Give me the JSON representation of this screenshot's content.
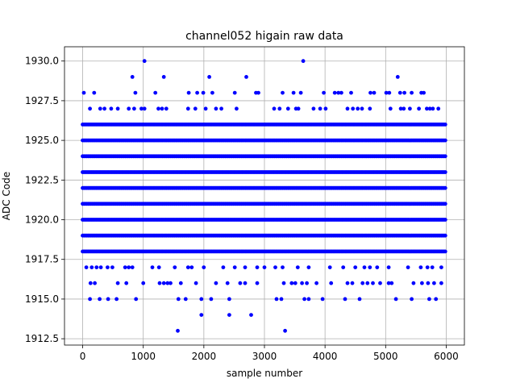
{
  "chart_data": {
    "type": "scatter",
    "title": "channel052 higain raw data",
    "xlabel": "sample number",
    "ylabel": "ADC Code",
    "xlim": [
      -300,
      6300
    ],
    "ylim": [
      1912.1,
      1930.9
    ],
    "xticks": [
      0,
      1000,
      2000,
      3000,
      4000,
      5000,
      6000
    ],
    "xtick_labels": [
      "0",
      "1000",
      "2000",
      "3000",
      "4000",
      "5000",
      "6000"
    ],
    "yticks": [
      1912.5,
      1915.0,
      1917.5,
      1920.0,
      1922.5,
      1925.0,
      1927.5,
      1930.0
    ],
    "ytick_labels": [
      "1912.5",
      "1915.0",
      "1917.5",
      "1920.0",
      "1922.5",
      "1925.0",
      "1927.5",
      "1930.0"
    ],
    "grid": true,
    "marker_color": "#0000ff",
    "n_samples": 6000,
    "levels": [
      {
        "value": 1913,
        "x": [
          1570,
          3340
        ]
      },
      {
        "value": 1914,
        "x": [
          1960,
          2420,
          2780
        ]
      },
      {
        "value": 1915,
        "x": [
          120,
          280,
          420,
          560,
          880,
          1580,
          1700,
          1960,
          2120,
          2420,
          3200,
          3280,
          3660,
          3730,
          3960,
          4330,
          4570,
          5170,
          5430,
          5720,
          5830
        ]
      },
      {
        "value": 1916,
        "x": [
          130,
          200,
          580,
          720,
          1000,
          1270,
          1340,
          1400,
          1450,
          1620,
          1870,
          2200,
          2390,
          2600,
          2680,
          2880,
          3320,
          3450,
          3510,
          3620,
          3700,
          3860,
          4100,
          4370,
          4450,
          4620,
          4700,
          4790,
          4910,
          5050,
          5100,
          5460,
          5600,
          5700,
          5800,
          5920
        ]
      },
      {
        "value": 1917,
        "x": [
          60,
          150,
          230,
          300,
          410,
          490,
          700,
          760,
          820,
          1150,
          1260,
          1520,
          1740,
          1800,
          2000,
          2320,
          2510,
          2680,
          2880,
          3000,
          3180,
          3300,
          3550,
          3730,
          4080,
          4300,
          4500,
          4650,
          4740,
          4860,
          5050,
          5370,
          5580,
          5690,
          5770,
          5920
        ]
      },
      {
        "value": 1918,
        "dense": true
      },
      {
        "value": 1919,
        "dense": true
      },
      {
        "value": 1920,
        "dense": true
      },
      {
        "value": 1921,
        "dense": true
      },
      {
        "value": 1922,
        "dense": true
      },
      {
        "value": 1923,
        "dense": true
      },
      {
        "value": 1924,
        "dense": true
      },
      {
        "value": 1925,
        "dense": true
      },
      {
        "value": 1926,
        "dense": true
      },
      {
        "value": 1927,
        "x": [
          120,
          290,
          360,
          470,
          580,
          760,
          850,
          970,
          1020,
          1250,
          1310,
          1380,
          1740,
          1860,
          2030,
          2200,
          2290,
          2540,
          3160,
          3250,
          3390,
          3520,
          3560,
          3810,
          3920,
          4010,
          4370,
          4460,
          4540,
          4610,
          4740,
          5080,
          5250,
          5300,
          5400,
          5550,
          5680,
          5730,
          5780,
          5870
        ]
      },
      {
        "value": 1928,
        "x": [
          20,
          190,
          870,
          1200,
          1750,
          1890,
          1990,
          2140,
          2510,
          2860,
          2900,
          3300,
          3480,
          3600,
          3980,
          4160,
          4220,
          4270,
          4430,
          4750,
          4810,
          5010,
          5060,
          5240,
          5310,
          5430,
          5590,
          5630
        ]
      },
      {
        "value": 1929,
        "x": [
          820,
          1340,
          2090,
          2700,
          5200
        ]
      },
      {
        "value": 1930,
        "x": [
          1020,
          3640
        ]
      }
    ]
  }
}
